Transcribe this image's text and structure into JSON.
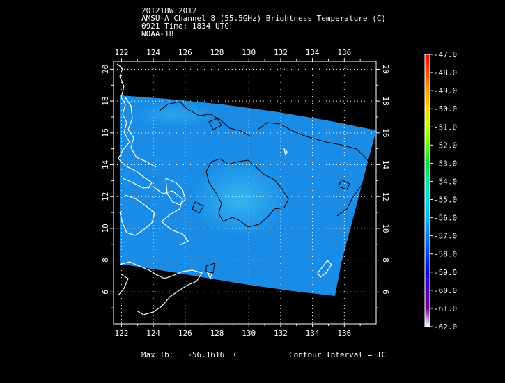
{
  "header": {
    "line1": "201218W 2012",
    "line2": "AMSU-A Channel 8 (55.5GHz) Brightness Temperature (C)",
    "line3": "0921 Time: 1834 UTC",
    "line4": "NOAA-18"
  },
  "map": {
    "lon_ticks": [
      "122",
      "124",
      "126",
      "128",
      "130",
      "132",
      "134",
      "136"
    ],
    "lat_ticks": [
      "20",
      "18",
      "16",
      "14",
      "12",
      "10",
      "8",
      "6"
    ],
    "lon_range": [
      121.5,
      138
    ],
    "lat_range": [
      4,
      20.5
    ]
  },
  "colorbar": {
    "labels": [
      "-47.0",
      "-48.0",
      "-49.0",
      "-50.0",
      "-51.0",
      "-52.0",
      "-53.0",
      "-54.0",
      "-55.0",
      "-56.0",
      "-57.0",
      "-58.0",
      "-59.0",
      "-60.0",
      "-61.0",
      "-62.0"
    ],
    "colors": [
      "#ff0000",
      "#ff5000",
      "#ff9a00",
      "#ffd400",
      "#c8ff00",
      "#60ff00",
      "#00e040",
      "#00e8a0",
      "#00e0e0",
      "#00b4ff",
      "#0080ff",
      "#0040ff",
      "#1000f0",
      "#5000c0",
      "#7800a0",
      "#ffffff"
    ]
  },
  "footer": {
    "max_label": "Max Tb:",
    "max_value": "-56.1616",
    "max_unit": "C",
    "contour": "Contour Interval = 1C"
  },
  "colors": {
    "swath": "#1a8ce6",
    "swath_warm": "#2eb4f0",
    "coast": "#ffffff",
    "contour": "#000000"
  }
}
